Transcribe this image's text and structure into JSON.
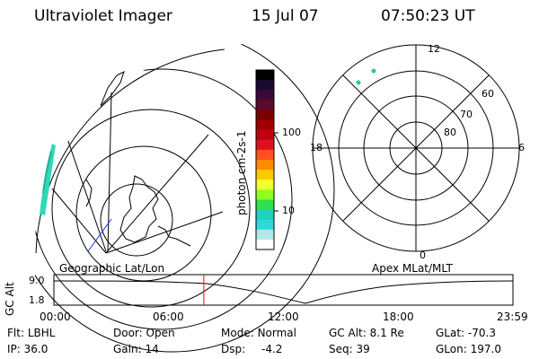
{
  "header": {
    "instrument": "Ultraviolet Imager",
    "date": "15 Jul 07",
    "time": "07:50:23 UT"
  },
  "left_panel": {
    "label": "Geographic Lat/Lon"
  },
  "right_panel": {
    "label": "Apex MLat/MLT",
    "lat_labels": [
      "60",
      "70",
      "80"
    ],
    "mlt_labels": {
      "top": "12",
      "left": "18",
      "right": "6",
      "bottom": "0"
    }
  },
  "colorbar": {
    "unit_label": "photon cm-2s-1",
    "tick_labels": [
      "100",
      "10"
    ],
    "colors": [
      "#000000",
      "#1a0a30",
      "#3a0a3a",
      "#5a0a2a",
      "#7a0000",
      "#a00000",
      "#c00010",
      "#e01020",
      "#ff5020",
      "#ff8c00",
      "#ffc800",
      "#f0ff30",
      "#90ff20",
      "#30e050",
      "#20d0c0",
      "#30d8d8",
      "#b0e8e8",
      "#ffffff"
    ]
  },
  "timeline": {
    "axis_label": "GC Alt",
    "y_labels": [
      "9.0",
      "1.8"
    ],
    "x_labels": [
      "00:00",
      "06:00",
      "12:00",
      "18:00",
      "23:59"
    ],
    "marker_time": "07:50",
    "marker_color": "#ff0000"
  },
  "info": {
    "filter_label": "Flt:",
    "filter_value": "LBHL",
    "ip_label": "IP:",
    "ip_value": "36.0",
    "door_label": "Door:",
    "door_value": "Open",
    "gain_label": "Gain:",
    "gain_value": "14",
    "mode_label": "Mode:",
    "mode_value": "Normal",
    "dsp_label": "Dsp:",
    "dsp_value": "-4.2",
    "gcalt_label": "GC Alt:",
    "gcalt_value": "8.1 Re",
    "seq_label": "Seq:",
    "seq_value": "39",
    "glat_label": "GLat:",
    "glat_value": "-70.3",
    "glon_label": "GLon:",
    "glon_value": "197.0"
  }
}
